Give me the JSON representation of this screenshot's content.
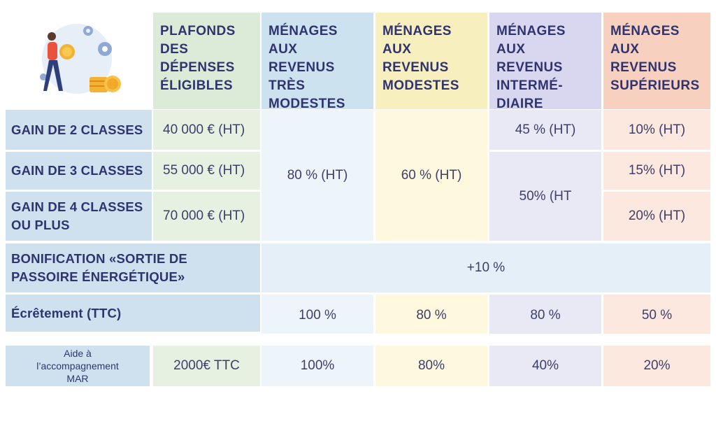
{
  "header": {
    "plafonds": [
      "PLAFONDS",
      "DES",
      "DÉPENSES",
      "ÉLIGIBLES"
    ],
    "tres_modestes": [
      "MÉNAGES AUX",
      "REVENUS TRÈS",
      "MODESTES"
    ],
    "modestes": [
      "MÉNAGES",
      "AUX REVENUS",
      "MODESTES"
    ],
    "intermediaire": [
      "MÉNAGES",
      "AUX REVENUS",
      "INTERMÉ-",
      "DIAIRE"
    ],
    "superieurs": [
      "MÉNAGES",
      "AUX",
      "REVENUS",
      "SUPÉRIEURS"
    ]
  },
  "rows": {
    "gain2": {
      "label": "GAIN DE 2 CLASSES",
      "plafond": "40 000 € (HT)",
      "intermediaire": "45 % (HT)",
      "superieurs": "10% (HT)"
    },
    "gain3": {
      "label": "GAIN DE 3 CLASSES",
      "plafond": "55 000 € (HT)",
      "superieurs": "15% (HT)"
    },
    "gain4": {
      "label": [
        "GAIN DE 4 CLASSES",
        "OU PLUS"
      ],
      "plafond": "70 000 € (HT)",
      "superieurs": "20% (HT)"
    },
    "merged": {
      "tres_modestes": "80 % (HT)",
      "modestes": "60 % (HT)",
      "intermediaire_3_4": "50% (HT"
    },
    "bonification": {
      "label": [
        "BONIFICATION «SORTIE DE",
        "PASSOIRE ÉNERGÉTIQUE»"
      ],
      "value": "+10 %"
    },
    "ecretement": {
      "label": "Écrêtement (TTC)",
      "tres_modestes": "100 %",
      "modestes": "80 %",
      "intermediaire": "80 %",
      "superieurs": "50 %"
    },
    "aide": {
      "label": [
        "Aide à",
        "l’accompagnement",
        "MAR"
      ],
      "plafond": "2000€ TTC",
      "tres_modestes": "100%",
      "modestes": "80%",
      "intermediaire": "40%",
      "superieurs": "20%"
    }
  },
  "colors": {
    "text": "#2f3470",
    "label_bg": "#cfe1ef",
    "green": "#dcebd7",
    "blue": "#cde2ef",
    "yellow": "#f8efbf",
    "purple": "#d9d7ef",
    "orange": "#f8d0bf"
  },
  "illustration": {
    "icons": [
      "person-carrying-coin-icon",
      "gear-icon",
      "coin-stack-icon"
    ]
  }
}
